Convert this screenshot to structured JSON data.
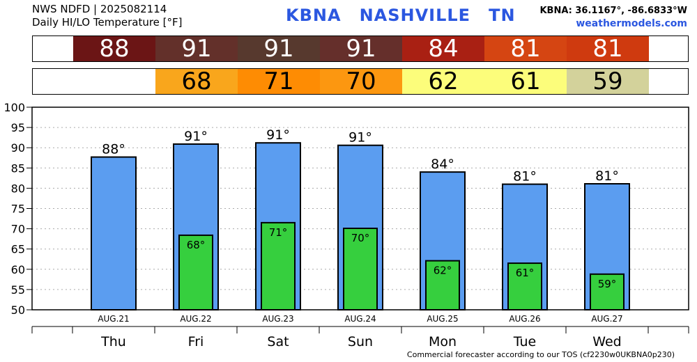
{
  "header": {
    "line1": "NWS NDFD | 2025082114",
    "line2": "Daily HI/LO Temperature [°F]",
    "station": "KBNA",
    "city": "NASHVILLE",
    "state": "TN",
    "coords": "KBNA: 36.1167°, -86.6833°W",
    "site": "weathermodels.com"
  },
  "colors": {
    "hi_bar": "#5b9df0",
    "lo_bar": "#36cf3e",
    "hi_cells": [
      "#6b1515",
      "#63302a",
      "#57392e",
      "#652f2b",
      "#a92013",
      "#d54512",
      "#cf3a0f"
    ],
    "lo_cells": [
      null,
      "#f9a61c",
      "#fe8c03",
      "#fc9710",
      "#fcfd7b",
      "#fcfd7b",
      "#d3d29b"
    ]
  },
  "chart_data": {
    "type": "bar",
    "categories": [
      "Thu",
      "Fri",
      "Sat",
      "Sun",
      "Mon",
      "Tue",
      "Wed"
    ],
    "dates": [
      "AUG.21",
      "AUG.22",
      "AUG.23",
      "AUG.24",
      "AUG.25",
      "AUG.26",
      "AUG.27"
    ],
    "series": [
      {
        "values": [
          87.7,
          90.9,
          91.2,
          90.6,
          84.0,
          81.0,
          81.1
        ],
        "labels": [
          "88°",
          "91°",
          "91°",
          "91°",
          "84°",
          "81°",
          "81°"
        ]
      },
      {
        "values": [
          null,
          68.4,
          71.5,
          70.1,
          62.1,
          61.5,
          58.8
        ],
        "labels": [
          "",
          "68°",
          "71°",
          "70°",
          "62°",
          "61°",
          "59°"
        ]
      }
    ],
    "hi_strip": [
      "88",
      "91",
      "91",
      "91",
      "84",
      "81",
      "81"
    ],
    "lo_strip": [
      "",
      "68",
      "71",
      "70",
      "62",
      "61",
      "59"
    ],
    "ylim": [
      50,
      100
    ],
    "yticks": [
      50,
      55,
      60,
      65,
      70,
      75,
      80,
      85,
      90,
      95,
      100
    ],
    "grid": true
  },
  "footer": "Commercial forecaster according to our TOS (cf2230w0UKBNA0p230)"
}
